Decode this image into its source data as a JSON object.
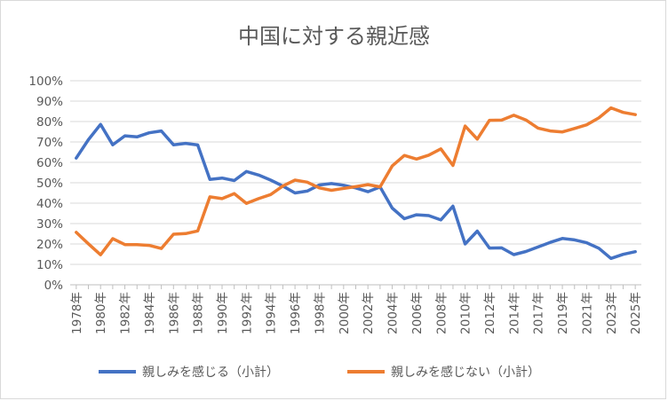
{
  "chart_data": {
    "type": "line",
    "title": "中国に対する親近感",
    "xlabel": "",
    "ylabel": "",
    "ylim": [
      0,
      100
    ],
    "y_ticks": [
      "0%",
      "10%",
      "20%",
      "30%",
      "40%",
      "50%",
      "60%",
      "70%",
      "80%",
      "90%",
      "100%"
    ],
    "x_tick_labels": [
      "1978年",
      "1980年",
      "1982年",
      "1984年",
      "1986年",
      "1988年",
      "1990年",
      "1992年",
      "1994年",
      "1996年",
      "1998年",
      "2000年",
      "2002年",
      "2004年",
      "2006年",
      "2008年",
      "2010年",
      "2012年",
      "2014年",
      "2017年",
      "2019年",
      "2021年",
      "2023年",
      "2025年"
    ],
    "x": [
      "1978年",
      "1979年",
      "1980年",
      "1981年",
      "1982年",
      "1983年",
      "1984年",
      "1985年",
      "1986年",
      "1987年",
      "1988年",
      "1989年",
      "1990年",
      "1991年",
      "1992年",
      "1993年",
      "1994年",
      "1995年",
      "1996年",
      "1997年",
      "1998年",
      "1999年",
      "2000年",
      "2001年",
      "2002年",
      "2003年",
      "2004年",
      "2005年",
      "2006年",
      "2007年",
      "2008年",
      "2009年",
      "2010年",
      "2011年",
      "2012年",
      "2013年",
      "2014年",
      "2015年",
      "2017年",
      "2018年",
      "2019年",
      "2020年",
      "2021年",
      "2022年",
      "2023年",
      "2024年",
      "2025年"
    ],
    "series": [
      {
        "name": "親しみを感じる（小計）",
        "color": "#4472C4",
        "values": [
          62.1,
          71.1,
          78.6,
          68.6,
          73.0,
          72.5,
          74.5,
          75.4,
          68.6,
          69.3,
          68.5,
          51.6,
          52.3,
          51.1,
          55.5,
          53.8,
          51.3,
          48.4,
          45.0,
          45.9,
          48.9,
          49.6,
          48.8,
          47.5,
          45.6,
          47.9,
          37.6,
          32.4,
          34.3,
          33.9,
          31.8,
          38.5,
          20.0,
          26.3,
          18.0,
          18.1,
          14.8,
          16.3,
          18.5,
          20.8,
          22.7,
          22.0,
          20.6,
          17.9,
          12.9,
          14.9,
          16.2
        ]
      },
      {
        "name": "親しみを感じない（小計）",
        "color": "#ED7D31",
        "values": [
          25.7,
          20.1,
          14.7,
          22.6,
          19.7,
          19.7,
          19.3,
          17.8,
          24.8,
          25.1,
          26.4,
          43.1,
          42.2,
          44.7,
          39.9,
          42.2,
          44.2,
          48.4,
          51.3,
          50.3,
          47.5,
          46.3,
          47.2,
          48.1,
          49.1,
          48.0,
          58.2,
          63.4,
          61.6,
          63.5,
          66.6,
          58.5,
          77.8,
          71.4,
          80.6,
          80.7,
          83.1,
          80.8,
          76.8,
          75.4,
          74.9,
          76.6,
          78.4,
          81.8,
          86.7,
          84.5,
          83.4
        ]
      }
    ],
    "legend_position": "bottom",
    "grid": true
  }
}
